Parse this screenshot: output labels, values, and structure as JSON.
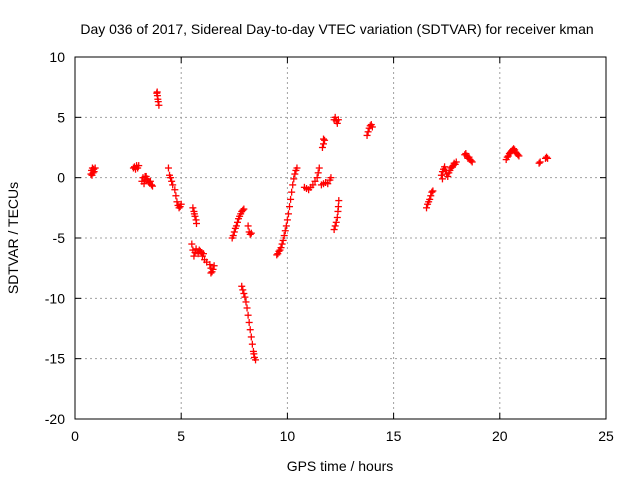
{
  "chart_data": {
    "type": "scatter",
    "title": "Day 036 of 2017, Sidereal Day-to-day VTEC variation (SDTVAR) for receiver kman",
    "xlabel": "GPS time / hours",
    "ylabel": "SDTVAR / TECUs",
    "xlim": [
      0,
      25
    ],
    "ylim": [
      -20,
      10
    ],
    "xticks": [
      0,
      5,
      10,
      15,
      20,
      25
    ],
    "yticks": [
      -20,
      -15,
      -10,
      -5,
      0,
      5,
      10
    ],
    "grid": true,
    "marker": "+",
    "color": "#ff0000",
    "series": [
      {
        "name": "SDTVAR",
        "points": [
          [
            0.75,
            0.3
          ],
          [
            0.78,
            0.6
          ],
          [
            0.82,
            0.8
          ],
          [
            0.85,
            0.4
          ],
          [
            0.88,
            0.7
          ],
          [
            0.9,
            0.5
          ],
          [
            0.95,
            0.8
          ],
          [
            0.8,
            0.2
          ],
          [
            2.75,
            0.8
          ],
          [
            2.8,
            0.9
          ],
          [
            2.85,
            0.7
          ],
          [
            2.9,
            1.0
          ],
          [
            2.95,
            0.8
          ],
          [
            3.0,
            1.0
          ],
          [
            3.15,
            -0.3
          ],
          [
            3.2,
            0.0
          ],
          [
            3.25,
            -0.5
          ],
          [
            3.3,
            -0.2
          ],
          [
            3.35,
            0.1
          ],
          [
            3.4,
            -0.1
          ],
          [
            3.45,
            -0.3
          ],
          [
            3.5,
            -0.4
          ],
          [
            3.55,
            -0.3
          ],
          [
            3.6,
            -0.6
          ],
          [
            3.65,
            -0.7
          ],
          [
            3.3,
            0.1
          ],
          [
            3.85,
            7.0
          ],
          [
            3.88,
            6.8
          ],
          [
            3.9,
            6.5
          ],
          [
            3.92,
            6.3
          ],
          [
            3.95,
            6.0
          ],
          [
            3.87,
            7.1
          ],
          [
            4.4,
            0.8
          ],
          [
            4.45,
            0.2
          ],
          [
            4.5,
            0.0
          ],
          [
            4.55,
            -0.3
          ],
          [
            4.6,
            -0.6
          ],
          [
            4.7,
            -1.0
          ],
          [
            4.75,
            -1.5
          ],
          [
            4.8,
            -2.0
          ],
          [
            4.85,
            -2.3
          ],
          [
            4.9,
            -2.5
          ],
          [
            4.95,
            -2.4
          ],
          [
            5.0,
            -2.2
          ],
          [
            5.55,
            -2.5
          ],
          [
            5.6,
            -2.8
          ],
          [
            5.62,
            -3.0
          ],
          [
            5.65,
            -3.2
          ],
          [
            5.7,
            -3.5
          ],
          [
            5.72,
            -3.8
          ],
          [
            5.5,
            -5.5
          ],
          [
            5.55,
            -6.0
          ],
          [
            5.6,
            -6.5
          ],
          [
            5.65,
            -6.2
          ],
          [
            5.7,
            -5.9
          ],
          [
            5.8,
            -6.3
          ],
          [
            5.85,
            -6.0
          ],
          [
            5.9,
            -6.1
          ],
          [
            5.95,
            -6.2
          ],
          [
            6.0,
            -6.5
          ],
          [
            6.05,
            -6.3
          ],
          [
            6.1,
            -6.8
          ],
          [
            6.2,
            -7.0
          ],
          [
            6.35,
            -7.2
          ],
          [
            6.4,
            -7.5
          ],
          [
            6.45,
            -7.8
          ],
          [
            6.5,
            -7.6
          ],
          [
            6.55,
            -7.3
          ],
          [
            6.4,
            -7.9
          ],
          [
            7.4,
            -5.0
          ],
          [
            7.45,
            -4.8
          ],
          [
            7.5,
            -4.5
          ],
          [
            7.55,
            -4.2
          ],
          [
            7.6,
            -4.0
          ],
          [
            7.65,
            -3.7
          ],
          [
            7.7,
            -3.4
          ],
          [
            7.75,
            -3.2
          ],
          [
            7.8,
            -3.0
          ],
          [
            7.85,
            -2.8
          ],
          [
            7.9,
            -2.7
          ],
          [
            7.95,
            -2.6
          ],
          [
            8.15,
            -4.0
          ],
          [
            8.2,
            -4.5
          ],
          [
            8.25,
            -4.7
          ],
          [
            8.3,
            -4.6
          ],
          [
            7.85,
            -9.0
          ],
          [
            7.9,
            -9.3
          ],
          [
            7.95,
            -9.6
          ],
          [
            8.0,
            -9.9
          ],
          [
            8.05,
            -10.3
          ],
          [
            8.1,
            -10.8
          ],
          [
            8.15,
            -11.4
          ],
          [
            8.2,
            -12.0
          ],
          [
            8.25,
            -12.6
          ],
          [
            8.3,
            -13.2
          ],
          [
            8.35,
            -13.8
          ],
          [
            8.4,
            -14.4
          ],
          [
            8.45,
            -14.9
          ],
          [
            8.5,
            -15.1
          ],
          [
            8.42,
            -14.6
          ],
          [
            9.5,
            -6.4
          ],
          [
            9.55,
            -6.3
          ],
          [
            9.6,
            -6.1
          ],
          [
            9.65,
            -6.0
          ],
          [
            9.7,
            -5.8
          ],
          [
            9.75,
            -5.5
          ],
          [
            9.8,
            -5.2
          ],
          [
            9.85,
            -4.8
          ],
          [
            9.9,
            -4.4
          ],
          [
            9.95,
            -4.0
          ],
          [
            10.0,
            -3.5
          ],
          [
            10.05,
            -3.0
          ],
          [
            10.1,
            -2.4
          ],
          [
            10.15,
            -1.8
          ],
          [
            10.2,
            -1.2
          ],
          [
            10.25,
            -0.6
          ],
          [
            10.3,
            -0.1
          ],
          [
            10.35,
            0.3
          ],
          [
            10.4,
            0.6
          ],
          [
            10.45,
            0.8
          ],
          [
            10.8,
            -0.8
          ],
          [
            10.9,
            -0.9
          ],
          [
            11.0,
            -1.0
          ],
          [
            11.1,
            -0.8
          ],
          [
            11.2,
            -0.6
          ],
          [
            11.3,
            -0.3
          ],
          [
            11.4,
            0.0
          ],
          [
            11.45,
            0.4
          ],
          [
            11.5,
            0.8
          ],
          [
            11.6,
            -0.6
          ],
          [
            11.7,
            -0.5
          ],
          [
            11.8,
            -0.4
          ],
          [
            11.9,
            -0.5
          ],
          [
            12.0,
            -0.2
          ],
          [
            12.05,
            0.0
          ],
          [
            11.65,
            2.5
          ],
          [
            11.7,
            2.8
          ],
          [
            11.75,
            3.1
          ],
          [
            11.7,
            3.2
          ],
          [
            12.2,
            -4.3
          ],
          [
            12.25,
            -4.0
          ],
          [
            12.3,
            -3.7
          ],
          [
            12.35,
            -3.3
          ],
          [
            12.38,
            -2.8
          ],
          [
            12.4,
            -2.4
          ],
          [
            12.42,
            -1.9
          ],
          [
            12.2,
            4.8
          ],
          [
            12.25,
            5.0
          ],
          [
            12.3,
            4.7
          ],
          [
            12.35,
            4.5
          ],
          [
            12.4,
            4.8
          ],
          [
            13.75,
            3.5
          ],
          [
            13.8,
            3.8
          ],
          [
            13.85,
            4.1
          ],
          [
            13.9,
            4.3
          ],
          [
            13.95,
            4.4
          ],
          [
            14.0,
            4.2
          ],
          [
            16.55,
            -2.5
          ],
          [
            16.6,
            -2.2
          ],
          [
            16.65,
            -2.0
          ],
          [
            16.7,
            -1.8
          ],
          [
            16.75,
            -1.5
          ],
          [
            16.8,
            -1.2
          ],
          [
            16.85,
            -1.1
          ],
          [
            17.25,
            0.2
          ],
          [
            17.3,
            0.5
          ],
          [
            17.35,
            0.7
          ],
          [
            17.4,
            0.9
          ],
          [
            17.45,
            0.6
          ],
          [
            17.5,
            0.3
          ],
          [
            17.55,
            0.1
          ],
          [
            17.6,
            0.4
          ],
          [
            17.65,
            0.6
          ],
          [
            17.7,
            0.8
          ],
          [
            17.75,
            0.9
          ],
          [
            17.8,
            1.0
          ],
          [
            17.85,
            1.2
          ],
          [
            17.9,
            1.1
          ],
          [
            17.95,
            1.3
          ],
          [
            17.3,
            -0.1
          ],
          [
            18.35,
            1.9
          ],
          [
            18.4,
            2.0
          ],
          [
            18.45,
            1.8
          ],
          [
            18.5,
            1.6
          ],
          [
            18.55,
            1.7
          ],
          [
            18.6,
            1.5
          ],
          [
            18.65,
            1.4
          ],
          [
            18.7,
            1.3
          ],
          [
            20.3,
            1.5
          ],
          [
            20.35,
            1.7
          ],
          [
            20.4,
            1.8
          ],
          [
            20.45,
            2.0
          ],
          [
            20.5,
            2.1
          ],
          [
            20.55,
            2.2
          ],
          [
            20.6,
            2.3
          ],
          [
            20.65,
            2.4
          ],
          [
            20.7,
            2.3
          ],
          [
            20.75,
            2.1
          ],
          [
            20.8,
            2.0
          ],
          [
            20.85,
            1.9
          ],
          [
            20.9,
            1.8
          ],
          [
            21.85,
            1.2
          ],
          [
            21.9,
            1.3
          ],
          [
            22.15,
            1.6
          ],
          [
            22.2,
            1.7
          ],
          [
            22.25,
            1.6
          ]
        ]
      }
    ]
  }
}
